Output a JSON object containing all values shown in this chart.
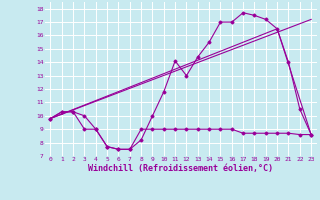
{
  "bg_color": "#c8eaf0",
  "line_color": "#990099",
  "grid_color": "#ffffff",
  "xlabel": "Windchill (Refroidissement éolien,°C)",
  "xlabel_fontsize": 6.0,
  "ylim": [
    7,
    18.5
  ],
  "xlim": [
    -0.5,
    23.5
  ],
  "line1_x": [
    0,
    1,
    2,
    3,
    4,
    5,
    6,
    7,
    8,
    9,
    10,
    11,
    12,
    13,
    14,
    15,
    16,
    17,
    18,
    19,
    20,
    21,
    22,
    23
  ],
  "line1_y": [
    9.8,
    10.3,
    10.3,
    10.0,
    9.0,
    7.7,
    7.5,
    7.5,
    8.2,
    10.0,
    11.8,
    14.1,
    13.0,
    14.4,
    15.5,
    17.0,
    17.0,
    17.7,
    17.5,
    17.2,
    16.5,
    14.0,
    10.5,
    8.6
  ],
  "line2_x": [
    0,
    23
  ],
  "line2_y": [
    9.8,
    17.2
  ],
  "line3_x": [
    0,
    20,
    23
  ],
  "line3_y": [
    9.8,
    16.5,
    8.6
  ],
  "line4_x": [
    0,
    1,
    2,
    3,
    4,
    5,
    6,
    7,
    8,
    9,
    10,
    11,
    12,
    13,
    14,
    15,
    16,
    17,
    18,
    19,
    20,
    21,
    22,
    23
  ],
  "line4_y": [
    9.8,
    10.3,
    10.3,
    9.0,
    9.0,
    7.7,
    7.5,
    7.5,
    9.0,
    9.0,
    9.0,
    9.0,
    9.0,
    9.0,
    9.0,
    9.0,
    9.0,
    8.7,
    8.7,
    8.7,
    8.7,
    8.7,
    8.6,
    8.6
  ]
}
